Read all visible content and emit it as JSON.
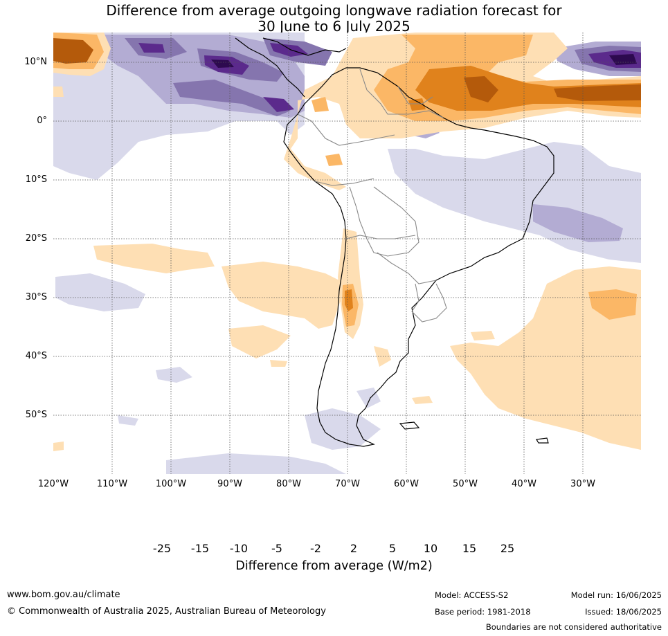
{
  "title": {
    "line1": "Difference from average outgoing longwave radiation forecast for",
    "line2": "30 June to 6 July 2025"
  },
  "map": {
    "lat_labels": [
      "10°N",
      "0°",
      "10°S",
      "20°S",
      "30°S",
      "40°S",
      "50°S"
    ],
    "lon_labels": [
      "120°W",
      "110°W",
      "100°W",
      "90°W",
      "80°W",
      "70°W",
      "60°W",
      "50°W",
      "40°W",
      "30°W"
    ],
    "colors": {
      "neg25": "#2d0a4f",
      "neg15": "#5b2a8c",
      "neg10": "#8575ae",
      "neg5": "#b3acd3",
      "neg2": "#d9d9eb",
      "zero": "#ffffff",
      "pos2": "#fedfb4",
      "pos5": "#fbb766",
      "pos10": "#e0821c",
      "pos15": "#b45a0b",
      "pos25": "#7f3b08"
    }
  },
  "colorbar": {
    "ticks": [
      "-25",
      "-15",
      "-10",
      "-5",
      "-2",
      "2",
      "5",
      "10",
      "15",
      "25"
    ],
    "title": "Difference from average (W/m2)"
  },
  "footer": {
    "website": "www.bom.gov.au/climate",
    "copyright": "© Commonwealth of Australia 2025, Australian Bureau of Meteorology",
    "model": "Model: ACCESS-S2",
    "base_period": "Base period: 1981-2018",
    "model_run": "Model run: 16/06/2025",
    "issued": "Issued: 18/06/2025",
    "disclaimer": "Boundaries are not considered authoritative"
  }
}
